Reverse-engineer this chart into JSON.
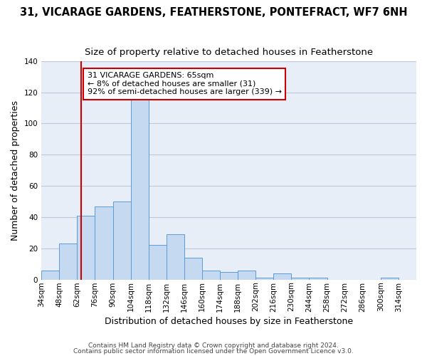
{
  "title": "31, VICARAGE GARDENS, FEATHERSTONE, PONTEFRACT, WF7 6NH",
  "subtitle": "Size of property relative to detached houses in Featherstone",
  "xlabel": "Distribution of detached houses by size in Featherstone",
  "ylabel": "Number of detached properties",
  "footer_line1": "Contains HM Land Registry data © Crown copyright and database right 2024.",
  "footer_line2": "Contains public sector information licensed under the Open Government Licence v3.0.",
  "bin_labels": [
    "34sqm",
    "48sqm",
    "62sqm",
    "76sqm",
    "90sqm",
    "104sqm",
    "118sqm",
    "132sqm",
    "146sqm",
    "160sqm",
    "174sqm",
    "188sqm",
    "202sqm",
    "216sqm",
    "230sqm",
    "244sqm",
    "258sqm",
    "272sqm",
    "286sqm",
    "300sqm",
    "314sqm"
  ],
  "bin_edges": [
    34,
    48,
    62,
    76,
    90,
    104,
    118,
    132,
    146,
    160,
    174,
    188,
    202,
    216,
    230,
    244,
    258,
    272,
    286,
    300,
    314
  ],
  "bar_heights": [
    6,
    23,
    41,
    47,
    50,
    118,
    22,
    29,
    14,
    6,
    5,
    6,
    1,
    4,
    1,
    1,
    0,
    0,
    0,
    1
  ],
  "bar_color": "#c5d9f0",
  "bar_edge_color": "#5b9bd5",
  "grid_color": "#c0c8d8",
  "background_color": "#e8eef8",
  "vline_x": 65,
  "vline_color": "#cc0000",
  "ylim": [
    0,
    140
  ],
  "yticks": [
    0,
    20,
    40,
    60,
    80,
    100,
    120,
    140
  ],
  "annotation_title": "31 VICARAGE GARDENS: 65sqm",
  "annotation_line1": "← 8% of detached houses are smaller (31)",
  "annotation_line2": "92% of semi-detached houses are larger (339) →",
  "annotation_box_color": "#ffffff",
  "annotation_border_color": "#cc0000",
  "title_fontsize": 10.5,
  "subtitle_fontsize": 9.5,
  "axis_label_fontsize": 9,
  "tick_fontsize": 7.5,
  "annotation_fontsize": 8,
  "footer_fontsize": 6.5
}
